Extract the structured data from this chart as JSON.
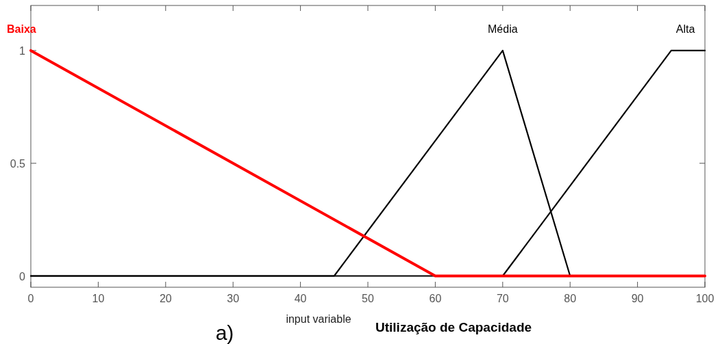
{
  "chart_data": {
    "type": "line",
    "xlabel": "input variable",
    "annotations": [
      "a)",
      "Utilização de Capacidade"
    ],
    "xlim": [
      0,
      100
    ],
    "ylim": [
      -0.05,
      1.2
    ],
    "xticks": [
      0,
      10,
      20,
      30,
      40,
      50,
      60,
      70,
      80,
      90,
      100
    ],
    "yticks": [
      0,
      0.5,
      1
    ],
    "grid": false,
    "line_style": "solid",
    "marker": "none",
    "series": [
      {
        "name": "Baixa",
        "color": "#ff0000",
        "x": [
          0,
          60,
          100
        ],
        "values": [
          1,
          0,
          0
        ]
      },
      {
        "name": "Média",
        "color": "#000000",
        "x": [
          0,
          45,
          70,
          80,
          100
        ],
        "values": [
          0,
          0,
          1,
          0,
          0
        ]
      },
      {
        "name": "Alta",
        "color": "#000000",
        "x": [
          0,
          70,
          95,
          100
        ],
        "values": [
          0,
          0,
          1,
          1
        ]
      }
    ]
  }
}
